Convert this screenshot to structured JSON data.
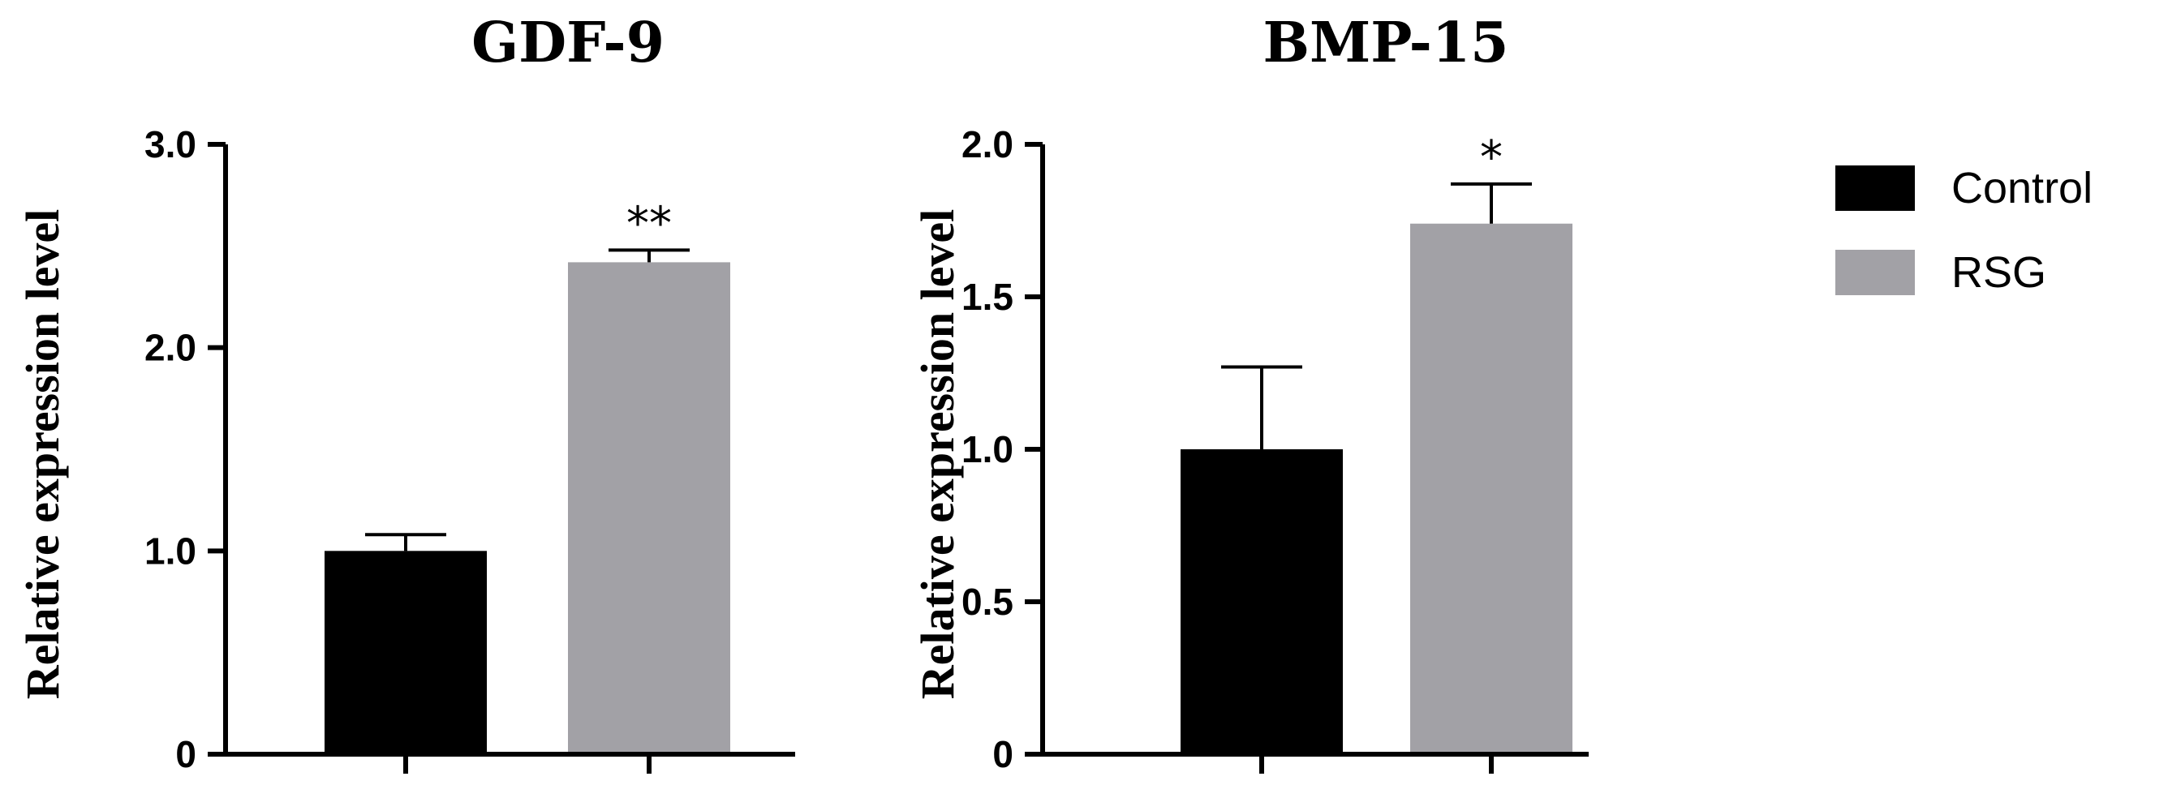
{
  "chart_data": [
    {
      "type": "bar",
      "title": "GDF-9",
      "ylabel": "Relative expression level",
      "xlabel": "",
      "categories": [
        "Control",
        "RSG"
      ],
      "values": [
        1.0,
        2.42
      ],
      "errors": [
        0.08,
        0.06
      ],
      "significance": [
        "",
        "**"
      ],
      "ylim": [
        0,
        3.0
      ],
      "yticks": [
        0,
        1.0,
        2.0,
        3.0
      ],
      "ytick_labels": [
        "0",
        "1.0",
        "2.0",
        "3.0"
      ],
      "grid": false
    },
    {
      "type": "bar",
      "title": "BMP-15",
      "ylabel": "Relative expression level",
      "xlabel": "",
      "categories": [
        "Control",
        "RSG"
      ],
      "values": [
        1.0,
        1.74
      ],
      "errors": [
        0.27,
        0.13
      ],
      "significance": [
        "",
        "*"
      ],
      "ylim": [
        0,
        2.0
      ],
      "yticks": [
        0,
        0.5,
        1.0,
        1.5,
        2.0
      ],
      "ytick_labels": [
        "0",
        "0.5",
        "1.0",
        "1.5",
        "2.0"
      ],
      "grid": false
    }
  ],
  "legend": {
    "placement": "right",
    "items": [
      {
        "label": "Control",
        "color": "#000000"
      },
      {
        "label": "RSG",
        "color": "#a2a1a6"
      }
    ]
  },
  "colors": {
    "control": "#000000",
    "rsg": "#a2a1a6"
  }
}
